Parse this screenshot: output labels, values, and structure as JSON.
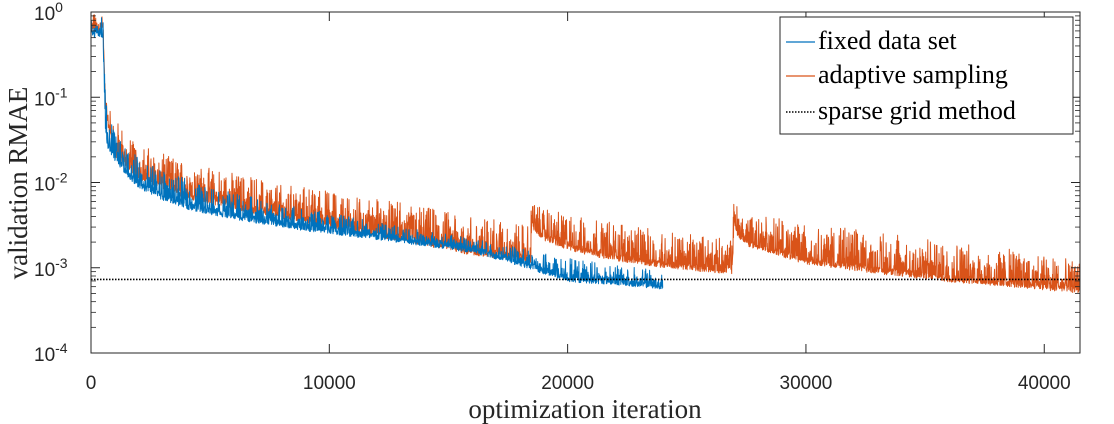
{
  "chart_data": {
    "type": "line",
    "xlabel": "optimization iteration",
    "ylabel": "validation RMAE",
    "x_scale": "linear",
    "y_scale": "log",
    "xlim": [
      0,
      41500
    ],
    "ylim": [
      0.0001,
      1
    ],
    "x_ticks": [
      0,
      10000,
      20000,
      30000,
      40000
    ],
    "x_tick_labels": [
      "0",
      "10000",
      "20000",
      "30000",
      "40000"
    ],
    "y_ticks": [
      {
        "value": 0.0001,
        "base": "10",
        "exp": "-4"
      },
      {
        "value": 0.001,
        "base": "10",
        "exp": "-3"
      },
      {
        "value": 0.01,
        "base": "10",
        "exp": "-2"
      },
      {
        "value": 0.1,
        "base": "10",
        "exp": "-1"
      },
      {
        "value": 1,
        "base": "10",
        "exp": "0"
      }
    ],
    "grid": false,
    "legend_position": "top-right",
    "series": [
      {
        "name": "fixed data set",
        "color": "#0072BD",
        "style": "solid",
        "x": [
          0,
          500,
          600,
          700,
          1000,
          1500,
          2000,
          3000,
          4000,
          5000,
          6000,
          7000,
          8000,
          9000,
          10000,
          12000,
          14000,
          16000,
          18000,
          20000,
          22000,
          23000,
          24000
        ],
        "y_base": [
          0.5,
          0.5,
          0.04,
          0.025,
          0.018,
          0.012,
          0.0085,
          0.0062,
          0.0049,
          0.0042,
          0.0037,
          0.0033,
          0.003,
          0.0027,
          0.0025,
          0.0021,
          0.0018,
          0.0015,
          0.00105,
          0.00068,
          0.00063,
          0.00059,
          0.00056
        ],
        "y_peak": [
          0.9,
          0.9,
          0.11,
          0.06,
          0.04,
          0.025,
          0.02,
          0.014,
          0.011,
          0.009,
          0.0075,
          0.0065,
          0.0055,
          0.005,
          0.0045,
          0.0035,
          0.0028,
          0.0022,
          0.0017,
          0.0013,
          0.0011,
          0.001,
          0.0009
        ]
      },
      {
        "name": "adaptive sampling",
        "color": "#D95319",
        "style": "solid",
        "x": [
          0,
          500,
          600,
          700,
          1000,
          2000,
          4000,
          6000,
          8000,
          10000,
          12000,
          14000,
          16000,
          18000,
          18450,
          18500,
          18600,
          19000,
          20000,
          22000,
          24000,
          26000,
          26900,
          27000,
          27100,
          27500,
          30000,
          33000,
          36000,
          39000,
          41500
        ],
        "y_base": [
          0.6,
          0.6,
          0.08,
          0.045,
          0.02,
          0.011,
          0.0065,
          0.0048,
          0.0038,
          0.003,
          0.0023,
          0.0018,
          0.0014,
          0.0012,
          0.00115,
          0.0034,
          0.0026,
          0.0021,
          0.0016,
          0.0012,
          0.001,
          0.00088,
          0.00085,
          0.0033,
          0.0024,
          0.0018,
          0.0011,
          0.00085,
          0.00068,
          0.00058,
          0.0005
        ],
        "y_peak": [
          0.95,
          0.95,
          0.14,
          0.09,
          0.055,
          0.028,
          0.017,
          0.013,
          0.01,
          0.008,
          0.0065,
          0.0052,
          0.004,
          0.0033,
          0.0032,
          0.0088,
          0.0062,
          0.005,
          0.0042,
          0.0034,
          0.0027,
          0.0023,
          0.0022,
          0.0088,
          0.0058,
          0.0045,
          0.0034,
          0.0026,
          0.002,
          0.0016,
          0.0012
        ]
      },
      {
        "name": "sparse grid method",
        "color": "#000000",
        "style": "dotted",
        "x": [
          0,
          41500
        ],
        "y": [
          0.00073,
          0.00073
        ]
      }
    ]
  }
}
